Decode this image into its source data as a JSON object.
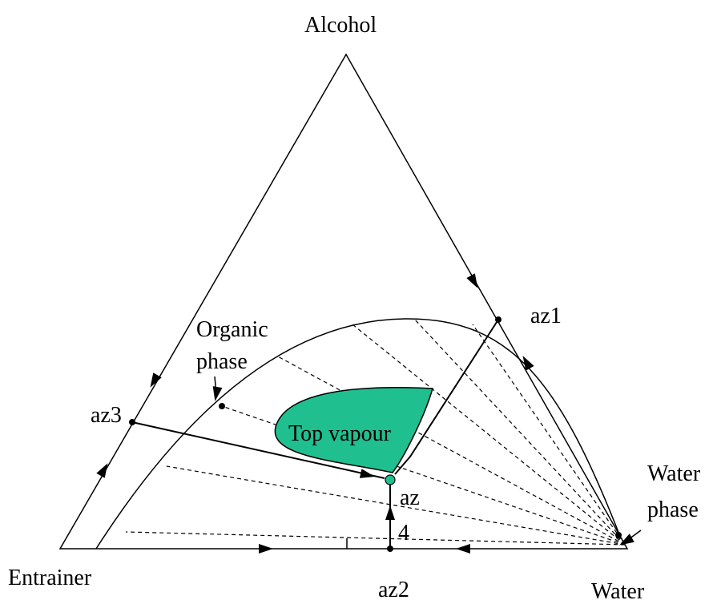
{
  "vertices": {
    "top": "Alcohol",
    "left": "Entrainer",
    "right": "Water"
  },
  "points": {
    "az1": "az1",
    "az2": "az2",
    "az3": "az3",
    "az": "az"
  },
  "region_label": "Top vapour",
  "organic_phase_label": [
    "Organic",
    "phase"
  ],
  "water_phase_label": [
    "Water",
    "phase"
  ],
  "stream_label": "4"
}
